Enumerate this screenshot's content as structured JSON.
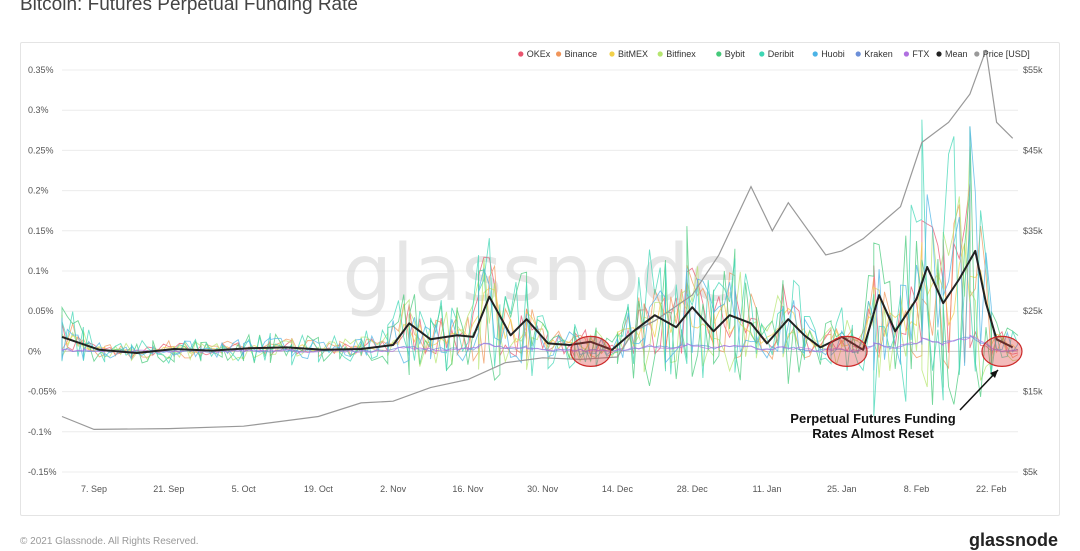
{
  "page": {
    "title": "Bitcoin: Futures Perpetual Funding Rate",
    "copyright": "© 2021 Glassnode. All Rights Reserved.",
    "logo": "glassnode"
  },
  "chart_data": {
    "type": "line",
    "title": "Bitcoin: Futures Perpetual Funding Rate",
    "watermark": "glassnode",
    "x_ticks": [
      "7. Sep",
      "21. Sep",
      "5. Oct",
      "19. Oct",
      "2. Nov",
      "16. Nov",
      "30. Nov",
      "14. Dec",
      "28. Dec",
      "11. Jan",
      "25. Jan",
      "8. Feb",
      "22. Feb"
    ],
    "x_range": [
      "2020-09-01",
      "2021-02-27"
    ],
    "y_left": {
      "ticks": [
        "0.35%",
        "0.3%",
        "0.25%",
        "0.2%",
        "0.15%",
        "0.1%",
        "0.05%",
        "0%",
        "-0.05%",
        "-0.1%",
        "-0.15%"
      ],
      "tick_values": [
        0.35,
        0.3,
        0.25,
        0.2,
        0.15,
        0.1,
        0.05,
        0,
        -0.05,
        -0.1,
        -0.15
      ],
      "range": [
        -0.15,
        0.35
      ],
      "unit": "%"
    },
    "y_right": {
      "ticks": [
        "$55k",
        "$45k",
        "$35k",
        "$25k",
        "$15k",
        "$5k"
      ],
      "tick_values": [
        55000,
        45000,
        35000,
        25000,
        15000,
        5000
      ],
      "range": [
        5000,
        55000
      ]
    },
    "legend": [
      {
        "name": "OKEx",
        "color": "#e8546e"
      },
      {
        "name": "Binance",
        "color": "#f0955a"
      },
      {
        "name": "BitMEX",
        "color": "#f2d04a"
      },
      {
        "name": "Bitfinex",
        "color": "#b5e56f"
      },
      {
        "name": "Bybit",
        "color": "#45c97a"
      },
      {
        "name": "Deribit",
        "color": "#3ed6b4"
      },
      {
        "name": "Huobi",
        "color": "#4bb3e6"
      },
      {
        "name": "Kraken",
        "color": "#6c8fd8"
      },
      {
        "name": "FTX",
        "color": "#b070e0"
      },
      {
        "name": "Mean",
        "color": "#222222"
      },
      {
        "name": "Price [USD]",
        "color": "#999999"
      }
    ],
    "mean_series": {
      "name": "Mean",
      "x": [
        "2020-09-01",
        "2020-09-08",
        "2020-09-15",
        "2020-09-22",
        "2020-09-29",
        "2020-10-06",
        "2020-10-13",
        "2020-10-20",
        "2020-10-27",
        "2020-11-02",
        "2020-11-05",
        "2020-11-09",
        "2020-11-14",
        "2020-11-17",
        "2020-11-20",
        "2020-11-24",
        "2020-11-27",
        "2020-12-01",
        "2020-12-05",
        "2020-12-09",
        "2020-12-13",
        "2020-12-17",
        "2020-12-21",
        "2020-12-25",
        "2020-12-28",
        "2021-01-01",
        "2021-01-04",
        "2021-01-08",
        "2021-01-11",
        "2021-01-15",
        "2021-01-18",
        "2021-01-21",
        "2021-01-25",
        "2021-01-29",
        "2021-02-01",
        "2021-02-04",
        "2021-02-08",
        "2021-02-10",
        "2021-02-13",
        "2021-02-16",
        "2021-02-19",
        "2021-02-21",
        "2021-02-23",
        "2021-02-26"
      ],
      "values": [
        0.018,
        0.002,
        -0.002,
        0.003,
        0.001,
        0.004,
        0.005,
        0.002,
        0.003,
        0.008,
        0.035,
        0.015,
        0.02,
        0.018,
        0.068,
        0.02,
        0.04,
        0.01,
        0.008,
        0.012,
        0.002,
        0.025,
        0.045,
        0.03,
        0.055,
        0.025,
        0.045,
        0.035,
        0.01,
        0.04,
        0.02,
        0.005,
        0.018,
        0.002,
        0.07,
        0.025,
        0.065,
        0.105,
        0.06,
        0.09,
        0.125,
        0.06,
        0.015,
        0.005
      ]
    },
    "price_series": {
      "name": "Price [USD]",
      "x": [
        "2020-09-01",
        "2020-09-07",
        "2020-09-21",
        "2020-10-05",
        "2020-10-19",
        "2020-10-27",
        "2020-11-02",
        "2020-11-09",
        "2020-11-16",
        "2020-11-23",
        "2020-11-30",
        "2020-12-07",
        "2020-12-14",
        "2020-12-17",
        "2020-12-21",
        "2020-12-28",
        "2021-01-02",
        "2021-01-08",
        "2021-01-12",
        "2021-01-15",
        "2021-01-22",
        "2021-01-25",
        "2021-01-29",
        "2021-02-05",
        "2021-02-09",
        "2021-02-14",
        "2021-02-18",
        "2021-02-21",
        "2021-02-23",
        "2021-02-26"
      ],
      "values": [
        11900,
        10300,
        10400,
        10700,
        11900,
        13600,
        13800,
        15500,
        16500,
        18600,
        19200,
        19000,
        19300,
        22500,
        23800,
        27000,
        32000,
        40500,
        35000,
        38500,
        32000,
        32500,
        34000,
        38000,
        46000,
        48500,
        52000,
        57500,
        48500,
        46500
      ]
    },
    "annotations": [
      {
        "text_lines": [
          "Perpetual Futures Funding",
          "Rates Almost Reset"
        ]
      }
    ],
    "highlights": [
      {
        "x": "2020-12-09",
        "y": 0.0
      },
      {
        "x": "2021-01-26",
        "y": 0.0
      },
      {
        "x": "2021-02-24",
        "y": 0.0
      }
    ]
  }
}
